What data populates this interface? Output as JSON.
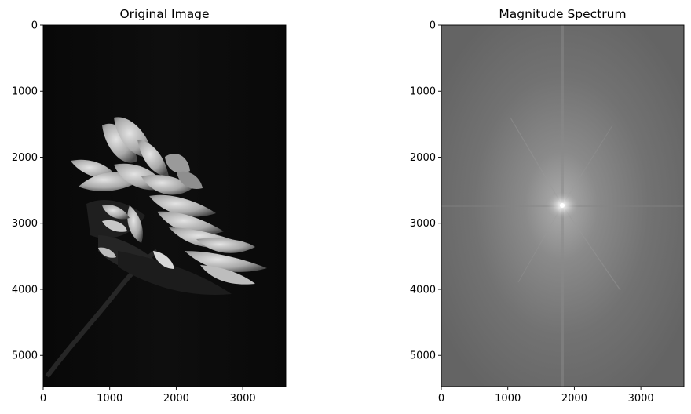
{
  "panels": [
    {
      "id": "original",
      "title": "Original Image",
      "x_ticks": [
        "0",
        "1000",
        "2000",
        "3000"
      ],
      "y_ticks": [
        "0",
        "1000",
        "2000",
        "3000",
        "4000",
        "5000"
      ],
      "x_tick_values": [
        0,
        1000,
        2000,
        3000
      ],
      "y_tick_values": [
        0,
        1000,
        2000,
        3000,
        4000,
        5000
      ],
      "xlim": [
        0,
        3648
      ],
      "ylim": [
        5472,
        0
      ],
      "content": "grayscale photo of a flower on a black background"
    },
    {
      "id": "spectrum",
      "title": "Magnitude Spectrum",
      "x_ticks": [
        "0",
        "1000",
        "2000",
        "3000"
      ],
      "y_ticks": [
        "0",
        "1000",
        "2000",
        "3000",
        "4000",
        "5000"
      ],
      "x_tick_values": [
        0,
        1000,
        2000,
        3000
      ],
      "y_tick_values": [
        0,
        1000,
        2000,
        3000,
        4000,
        5000
      ],
      "xlim": [
        0,
        3648
      ],
      "ylim": [
        5472,
        0
      ],
      "content": "grayscale FFT magnitude spectrum with bright center"
    }
  ],
  "colors": {
    "background": "#ffffff",
    "axis": "#000000",
    "original_bg": "#0b0b0b",
    "spectrum_bg": "#6e6e6e"
  }
}
